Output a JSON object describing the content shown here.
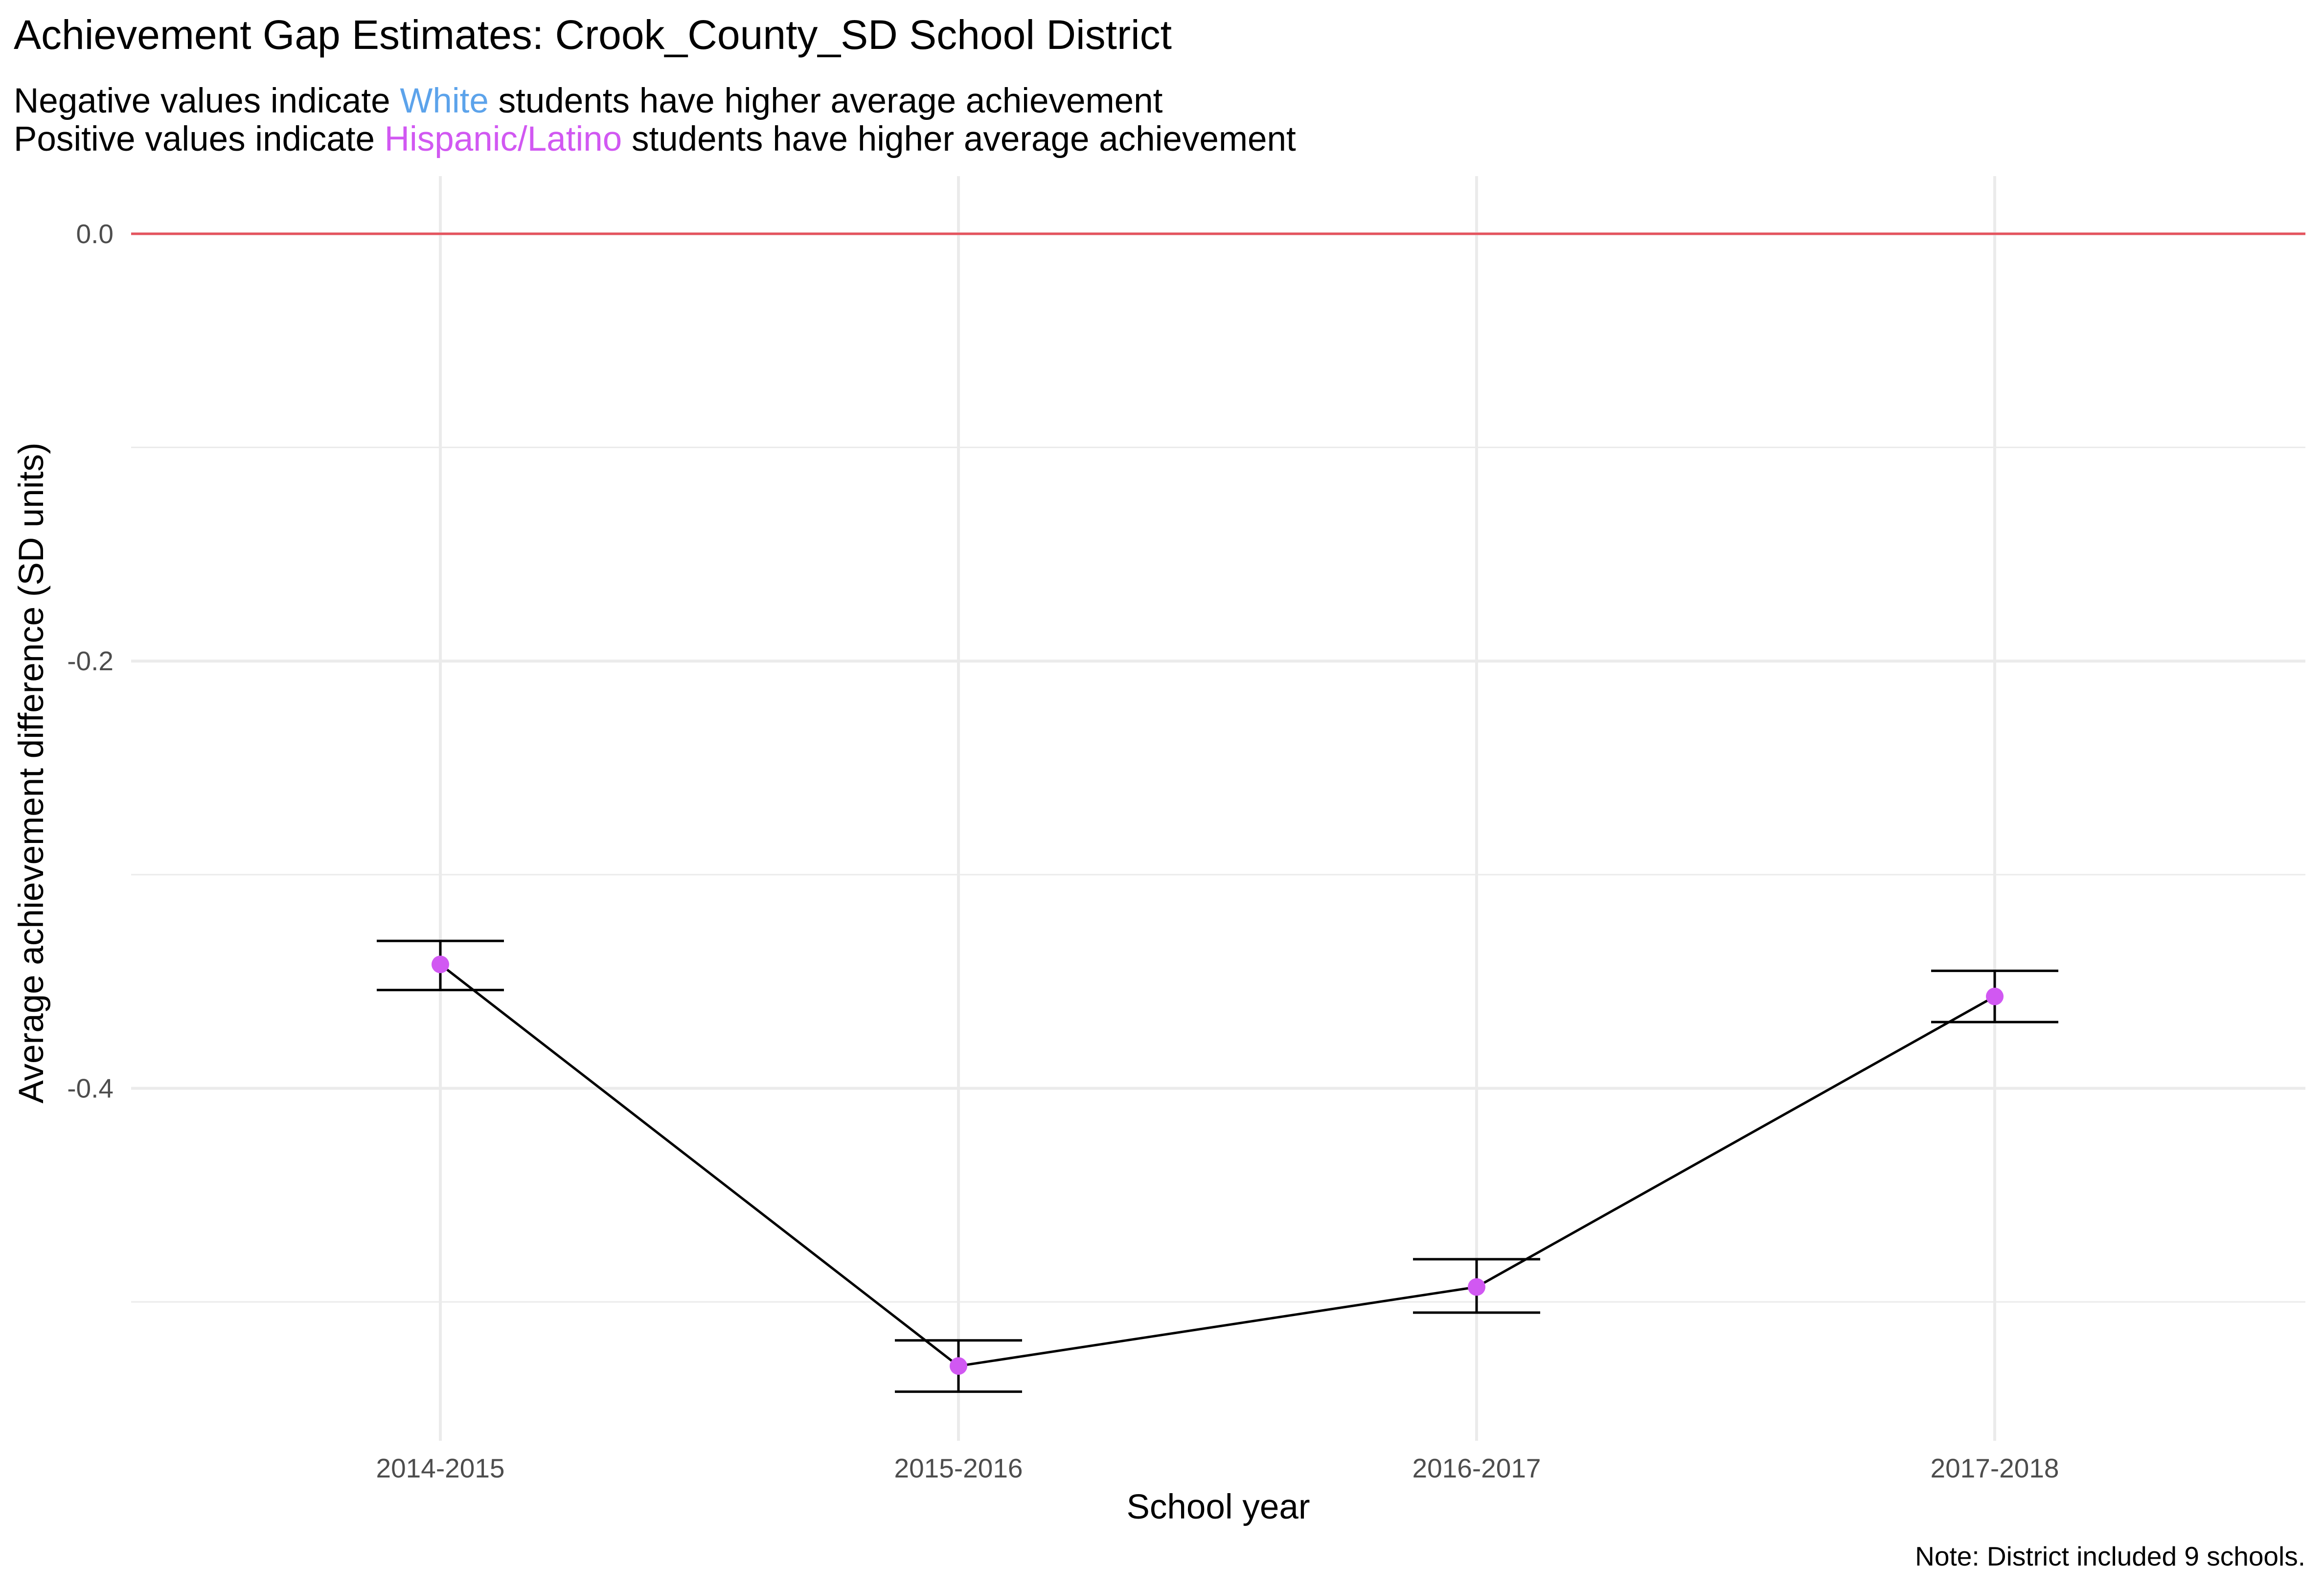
{
  "title": "Achievement Gap Estimates: Crook_County_SD School District",
  "subtitle": {
    "line1": {
      "before": "Negative values indicate ",
      "highlight": "White",
      "after": " students have higher average achievement",
      "color": "#5ca3eb"
    },
    "line2": {
      "before": "Positive values indicate ",
      "highlight": "Hispanic/Latino",
      "after": " students have higher average achievement",
      "color": "#d158f2"
    }
  },
  "caption": "Note: District included 9 schools.",
  "colors": {
    "reference_line": "#e5535d",
    "point": "#d158f2",
    "line": "#000000",
    "grid": "#ebebeb"
  },
  "chart_data": {
    "type": "line",
    "xlabel": "School year",
    "ylabel": "Average achievement difference (SD units)",
    "categories": [
      "2014-2015",
      "2015-2016",
      "2016-2017",
      "2017-2018"
    ],
    "values": [
      -0.342,
      -0.53,
      -0.493,
      -0.357
    ],
    "error_low": [
      -0.354,
      -0.542,
      -0.505,
      -0.369
    ],
    "error_high": [
      -0.331,
      -0.518,
      -0.48,
      -0.345
    ],
    "ylim": [
      -0.565,
      0.027
    ],
    "yticks": [
      0.0,
      -0.2,
      -0.4
    ],
    "ytick_labels": [
      "0.0",
      "-0.2",
      "-0.4"
    ],
    "reference_line": 0.0,
    "grid": true,
    "legend": "none"
  }
}
